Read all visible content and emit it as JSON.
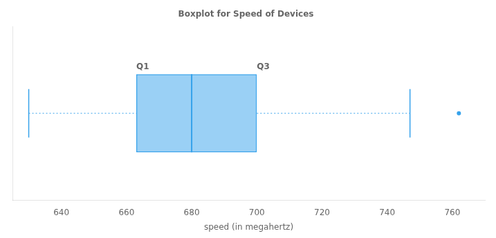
{
  "chart_data": {
    "type": "boxplot",
    "orientation": "horizontal",
    "title": "Boxplot for Speed of Devices",
    "xlabel": "speed (in megahertz)",
    "q1": 663,
    "median": 680,
    "q3": 700,
    "whisker_low": 630,
    "whisker_high": 747,
    "outliers": [
      762
    ],
    "xlim": [
      625,
      770
    ],
    "xticks": [
      640,
      660,
      680,
      700,
      720,
      740,
      760
    ],
    "grid": false,
    "tick_labels": "x",
    "annotations": [
      {
        "text": "Q1",
        "x": 663
      },
      {
        "text": "Q3",
        "x": 700
      }
    ]
  }
}
